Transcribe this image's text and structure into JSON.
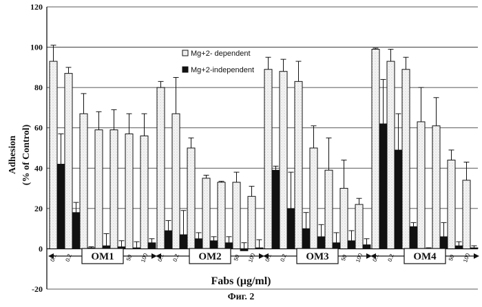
{
  "chart_data": {
    "type": "bar",
    "xlabel": "Fabs (µg/ml)",
    "ylabel_line1": "Adhesion",
    "ylabel_line2": "(% of Control)",
    "ylim": [
      -20,
      120
    ],
    "yticks": [
      "-20",
      "0",
      "20",
      "40",
      "60",
      "80",
      "100",
      "120"
    ],
    "grid": true,
    "legend_position": "top-center",
    "groups": [
      {
        "label": "OM1",
        "categories": [
          "0.1",
          "0.2",
          "1",
          "10",
          "20",
          "50",
          "100"
        ]
      },
      {
        "label": "OM2",
        "categories": [
          "0.1",
          "0.2",
          "1",
          "10",
          "20",
          "50",
          "100"
        ]
      },
      {
        "label": "OM3",
        "categories": [
          "0.1",
          "0.2",
          "1",
          "10",
          "20",
          "50",
          "100"
        ]
      },
      {
        "label": "OM4",
        "categories": [
          "0.1",
          "0.2",
          "1",
          "10",
          "20",
          "50",
          "100"
        ]
      }
    ],
    "series": [
      {
        "name": "Mg+2- dependent",
        "color": "#f2f2f2",
        "values": [
          [
            93,
            87,
            67,
            59,
            59,
            57,
            56
          ],
          [
            80,
            67,
            50,
            35,
            33,
            33,
            26
          ],
          [
            89,
            88,
            83,
            50,
            39,
            30,
            22
          ],
          [
            99,
            93,
            89,
            63,
            61,
            44,
            34
          ]
        ],
        "errors": [
          [
            8,
            3,
            10,
            9,
            10,
            10,
            11
          ],
          [
            3,
            18,
            5,
            1.5,
            0.5,
            5,
            5
          ],
          [
            6,
            6,
            10,
            11,
            16,
            14,
            3
          ],
          [
            0.5,
            6,
            6,
            17,
            14,
            5,
            9
          ]
        ]
      },
      {
        "name": "Mg+2-independent",
        "color": "#111111",
        "values": [
          [
            42,
            18,
            0.5,
            1.5,
            1,
            0.5,
            3
          ],
          [
            9,
            7,
            5,
            4,
            3,
            -1,
            0.5
          ],
          [
            39,
            20,
            10,
            6,
            3,
            4,
            2
          ],
          [
            62,
            49,
            11,
            0,
            6,
            1.5,
            0.5
          ]
        ],
        "errors": [
          [
            15,
            5,
            0.5,
            6,
            3,
            3,
            2
          ],
          [
            5,
            12,
            3,
            2,
            3,
            4,
            4
          ],
          [
            2,
            18,
            8,
            6,
            5,
            5,
            3
          ],
          [
            22,
            18,
            2,
            0.5,
            7,
            2,
            1
          ]
        ]
      }
    ]
  },
  "caption": "Фиг. 2"
}
